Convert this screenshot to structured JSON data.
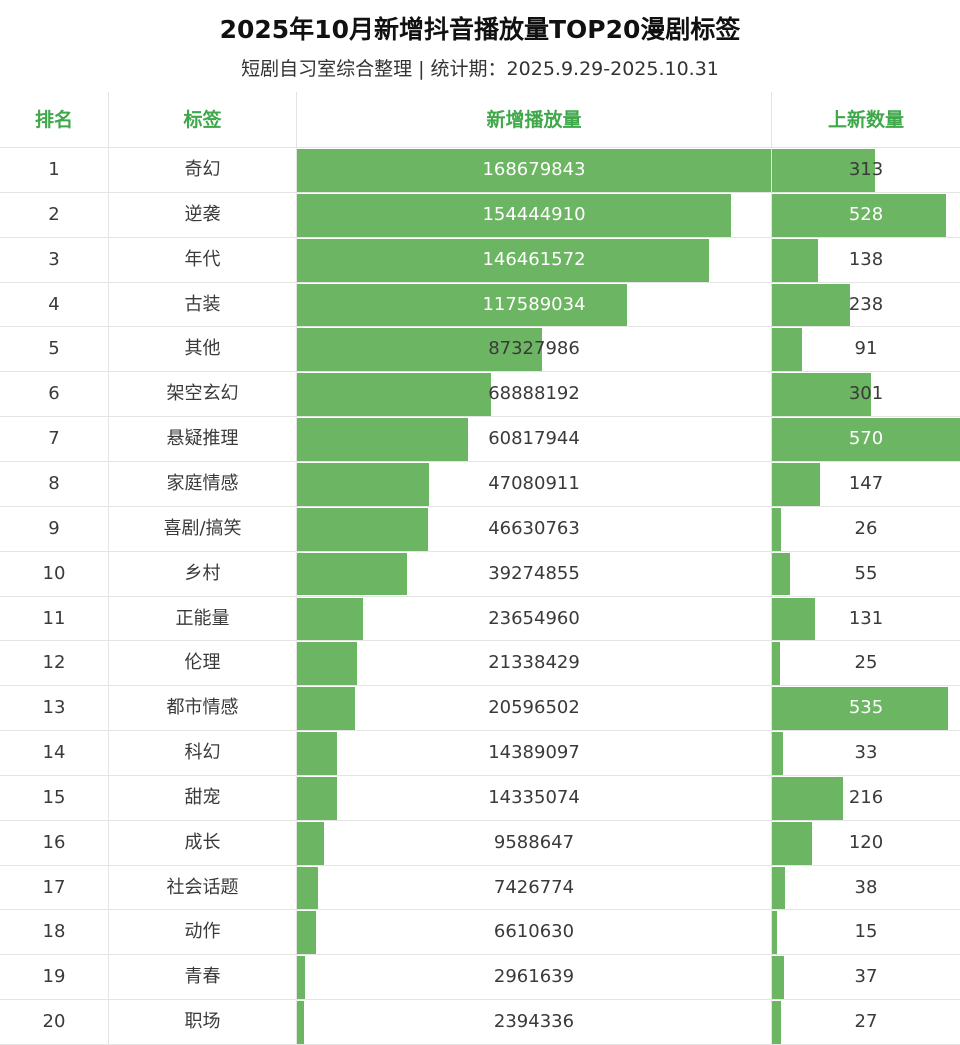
{
  "header": {
    "title": "2025年10月新增抖音播放量TOP20漫剧标签",
    "subtitle": "短剧自习室综合整理 | 统计期：2025.9.29-2025.10.31"
  },
  "columns": {
    "rank": "排名",
    "tag": "标签",
    "plays": "新增播放量",
    "count": "上新数量"
  },
  "colors": {
    "accent": "#3fa84a",
    "bar": "#6cb562"
  },
  "chart_data": {
    "type": "table",
    "title": "2025年10月新增抖音播放量TOP20漫剧标签",
    "columns": [
      "排名",
      "标签",
      "新增播放量",
      "上新数量"
    ],
    "rows": [
      {
        "rank": "1",
        "tag": "奇幻",
        "plays": 168679843,
        "count": 313
      },
      {
        "rank": "2",
        "tag": "逆袭",
        "plays": 154444910,
        "count": 528
      },
      {
        "rank": "3",
        "tag": "年代",
        "plays": 146461572,
        "count": 138
      },
      {
        "rank": "4",
        "tag": "古装",
        "plays": 117589034,
        "count": 238
      },
      {
        "rank": "5",
        "tag": "其他",
        "plays": 87327986,
        "count": 91
      },
      {
        "rank": "6",
        "tag": "架空玄幻",
        "plays": 68888192,
        "count": 301
      },
      {
        "rank": "7",
        "tag": "悬疑推理",
        "plays": 60817944,
        "count": 570
      },
      {
        "rank": "8",
        "tag": "家庭情感",
        "plays": 47080911,
        "count": 147
      },
      {
        "rank": "9",
        "tag": "喜剧/搞笑",
        "plays": 46630763,
        "count": 26
      },
      {
        "rank": "10",
        "tag": "乡村",
        "plays": 39274855,
        "count": 55
      },
      {
        "rank": "11",
        "tag": "正能量",
        "plays": 23654960,
        "count": 131
      },
      {
        "rank": "12",
        "tag": "伦理",
        "plays": 21338429,
        "count": 25
      },
      {
        "rank": "13",
        "tag": "都市情感",
        "plays": 20596502,
        "count": 535
      },
      {
        "rank": "14",
        "tag": "科幻",
        "plays": 14389097,
        "count": 33
      },
      {
        "rank": "15",
        "tag": "甜宠",
        "plays": 14335074,
        "count": 216
      },
      {
        "rank": "16",
        "tag": "成长",
        "plays": 9588647,
        "count": 120
      },
      {
        "rank": "17",
        "tag": "社会话题",
        "plays": 7426774,
        "count": 38
      },
      {
        "rank": "18",
        "tag": "动作",
        "plays": 6610630,
        "count": 15
      },
      {
        "rank": "19",
        "tag": "青春",
        "plays": 2961639,
        "count": 37
      },
      {
        "rank": "20",
        "tag": "职场",
        "plays": 2394336,
        "count": 27
      }
    ]
  }
}
